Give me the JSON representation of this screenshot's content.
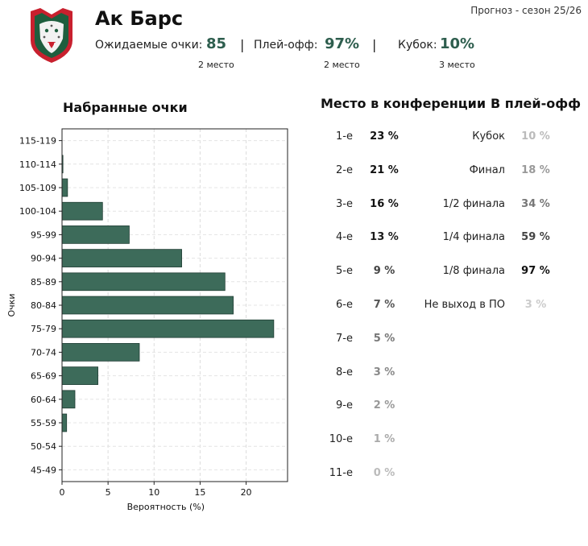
{
  "header": {
    "season": "Прогноз - сезон 25/26",
    "team": "Ак Барс",
    "stats": [
      {
        "label": "Ожидаемые очки:",
        "value": "85",
        "rank": "2 место"
      },
      {
        "label": "Плей-офф:",
        "value": "97%",
        "rank": "2 место"
      },
      {
        "label": "Кубок:",
        "value": "10%",
        "rank": "3 место"
      }
    ]
  },
  "colors": {
    "bar": "#3d6b5a",
    "accent": "#2e5e4e",
    "logo_red": "#c8202e",
    "logo_green": "#1e5e3e"
  },
  "logo": {
    "icon": "snow-leopard-shield-logo"
  },
  "chart_data": {
    "type": "bar",
    "orientation": "horizontal",
    "title": "Набранные очки",
    "xlabel": "Вероятность (%)",
    "ylabel": "Очки",
    "xlim": [
      0,
      24.5
    ],
    "xticks": [
      0,
      5,
      10,
      15,
      20
    ],
    "grid": true,
    "categories": [
      "115-119",
      "110-114",
      "105-109",
      "100-104",
      "95-99",
      "90-94",
      "85-89",
      "80-84",
      "75-79",
      "70-74",
      "65-69",
      "60-64",
      "55-59",
      "50-54",
      "45-49"
    ],
    "values": [
      0.0,
      0.1,
      0.6,
      4.4,
      7.3,
      13.0,
      17.7,
      18.6,
      23.0,
      8.4,
      3.9,
      1.4,
      0.5,
      0.0,
      0.0
    ]
  },
  "conference": {
    "title": "Место в конференции",
    "rows": [
      {
        "place": "1-е",
        "value": "23 %",
        "shade": "#111111"
      },
      {
        "place": "2-е",
        "value": "21 %",
        "shade": "#111111"
      },
      {
        "place": "3-е",
        "value": "16 %",
        "shade": "#111111"
      },
      {
        "place": "4-е",
        "value": "13 %",
        "shade": "#1a1a1a"
      },
      {
        "place": "5-е",
        "value": "9 %",
        "shade": "#444444"
      },
      {
        "place": "6-е",
        "value": "7 %",
        "shade": "#555555"
      },
      {
        "place": "7-е",
        "value": "5 %",
        "shade": "#777777"
      },
      {
        "place": "8-е",
        "value": "3 %",
        "shade": "#888888"
      },
      {
        "place": "9-е",
        "value": "2 %",
        "shade": "#999999"
      },
      {
        "place": "10-е",
        "value": "1 %",
        "shade": "#aaaaaa"
      },
      {
        "place": "11-е",
        "value": "0 %",
        "shade": "#bbbbbb"
      }
    ]
  },
  "playoff": {
    "title": "В плей-офф",
    "rows": [
      {
        "stage": "Кубок",
        "value": "10 %",
        "shade": "#bbbbbb"
      },
      {
        "stage": "Финал",
        "value": "18 %",
        "shade": "#999999"
      },
      {
        "stage": "1/2 финала",
        "value": "34 %",
        "shade": "#777777"
      },
      {
        "stage": "1/4 финала",
        "value": "59 %",
        "shade": "#444444"
      },
      {
        "stage": "1/8 финала",
        "value": "97 %",
        "shade": "#111111"
      },
      {
        "stage": "Не выход в ПО",
        "value": "3 %",
        "shade": "#cccccc"
      }
    ]
  }
}
